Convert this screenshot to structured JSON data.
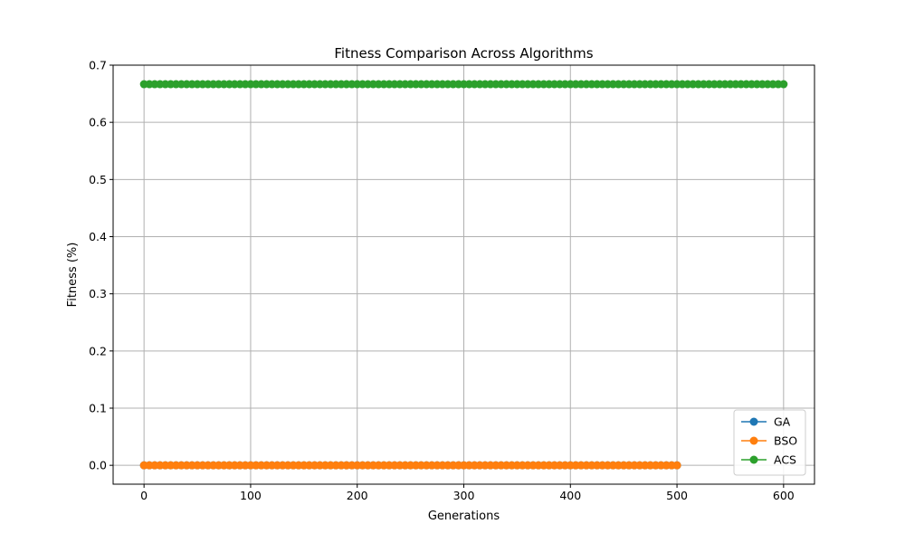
{
  "chart_data": {
    "type": "line",
    "title": "Fitness Comparison Across Algorithms",
    "xlabel": "Generations",
    "ylabel": "Fitness (%)",
    "xlim": [
      -29,
      629
    ],
    "ylim": [
      -0.033,
      0.7
    ],
    "xticks": [
      0,
      100,
      200,
      300,
      400,
      500,
      600
    ],
    "yticks": [
      0.0,
      0.1,
      0.2,
      0.3,
      0.4,
      0.5,
      0.6,
      0.7
    ],
    "grid": true,
    "legend_position": "lower-right",
    "series": [
      {
        "name": "GA",
        "color": "#1f77b4",
        "x_start": 0,
        "x_end": 500,
        "x_step": 5,
        "value": 0.0
      },
      {
        "name": "BSO",
        "color": "#ff7f0e",
        "x_start": 0,
        "x_end": 500,
        "x_step": 5,
        "value": 0.0
      },
      {
        "name": "ACS",
        "color": "#2ca02c",
        "x_start": 0,
        "x_end": 600,
        "x_step": 5,
        "value": 0.6667
      }
    ]
  }
}
